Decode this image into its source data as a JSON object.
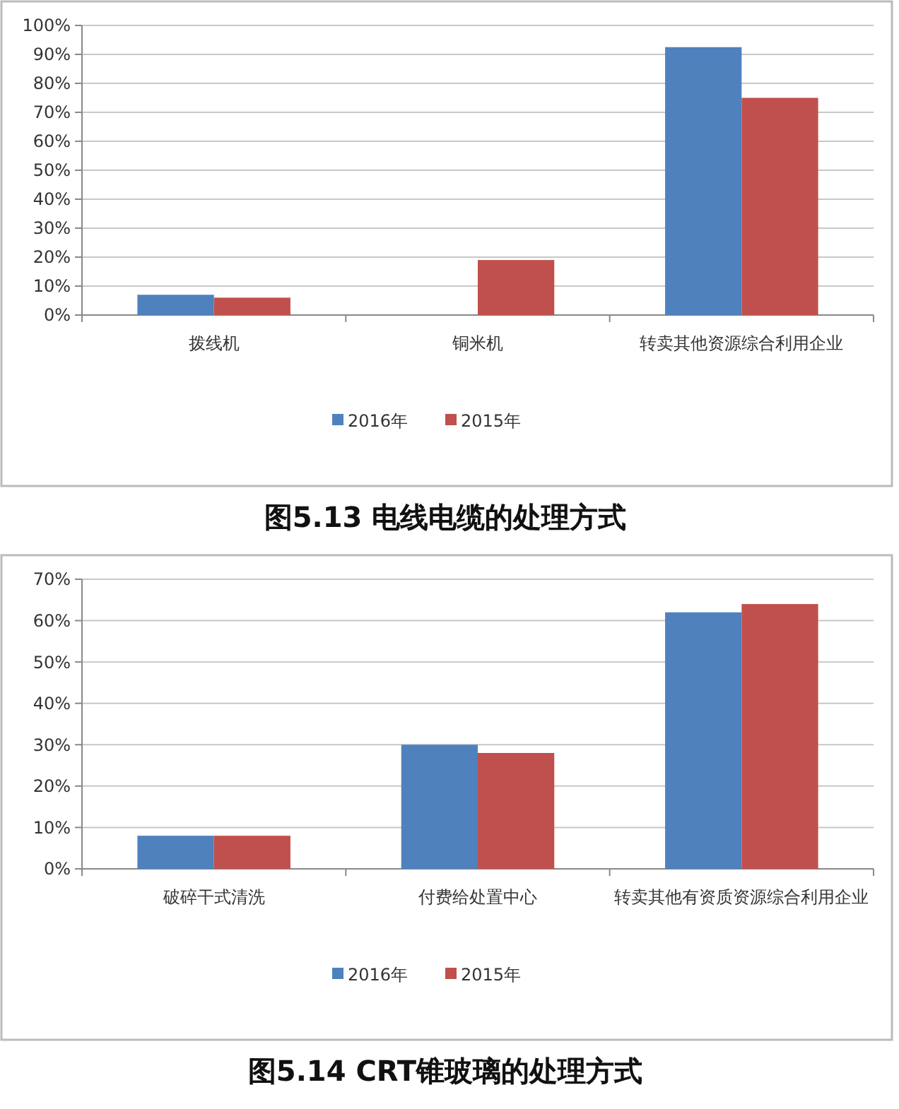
{
  "chart_data": [
    {
      "type": "bar",
      "title": "图5.13 电线电缆的处理方式",
      "categories": [
        "拨线机",
        "铜米机",
        "转卖其他资源综合利用企业"
      ],
      "series": [
        {
          "name": "2016年",
          "color": "#4f81bd",
          "values": [
            7,
            null,
            92.5
          ]
        },
        {
          "name": "2015年",
          "color": "#c0504d",
          "values": [
            6,
            19,
            75
          ]
        }
      ],
      "ylim": [
        0,
        100
      ],
      "yticks": [
        {
          "value": 0,
          "label": "0%"
        },
        {
          "value": 10,
          "label": "10%"
        },
        {
          "value": 20,
          "label": "20%"
        },
        {
          "value": 30,
          "label": "30%"
        },
        {
          "value": 40,
          "label": "40%"
        },
        {
          "value": 50,
          "label": "50%"
        },
        {
          "value": 60,
          "label": "60%"
        },
        {
          "value": 70,
          "label": "70%"
        },
        {
          "value": 80,
          "label": "80%"
        },
        {
          "value": 90,
          "label": "90%"
        },
        {
          "value": 100,
          "label": "100%"
        }
      ],
      "grid": "y",
      "legend": "bottom"
    },
    {
      "type": "bar",
      "title": "图5.14 CRT锥玻璃的处理方式",
      "categories": [
        "破碎干式清洗",
        "付费给处置中心",
        "转卖其他有资质资源综合利用企业"
      ],
      "series": [
        {
          "name": "2016年",
          "color": "#4f81bd",
          "values": [
            8,
            30,
            62
          ]
        },
        {
          "name": "2015年",
          "color": "#c0504d",
          "values": [
            8,
            28,
            64
          ]
        }
      ],
      "ylim": [
        0,
        70
      ],
      "yticks": [
        {
          "value": 0,
          "label": "0%"
        },
        {
          "value": 10,
          "label": "10%"
        },
        {
          "value": 20,
          "label": "20%"
        },
        {
          "value": 30,
          "label": "30%"
        },
        {
          "value": 40,
          "label": "40%"
        },
        {
          "value": 50,
          "label": "50%"
        },
        {
          "value": 60,
          "label": "60%"
        },
        {
          "value": 70,
          "label": "70%"
        }
      ],
      "grid": "y",
      "legend": "bottom"
    }
  ]
}
